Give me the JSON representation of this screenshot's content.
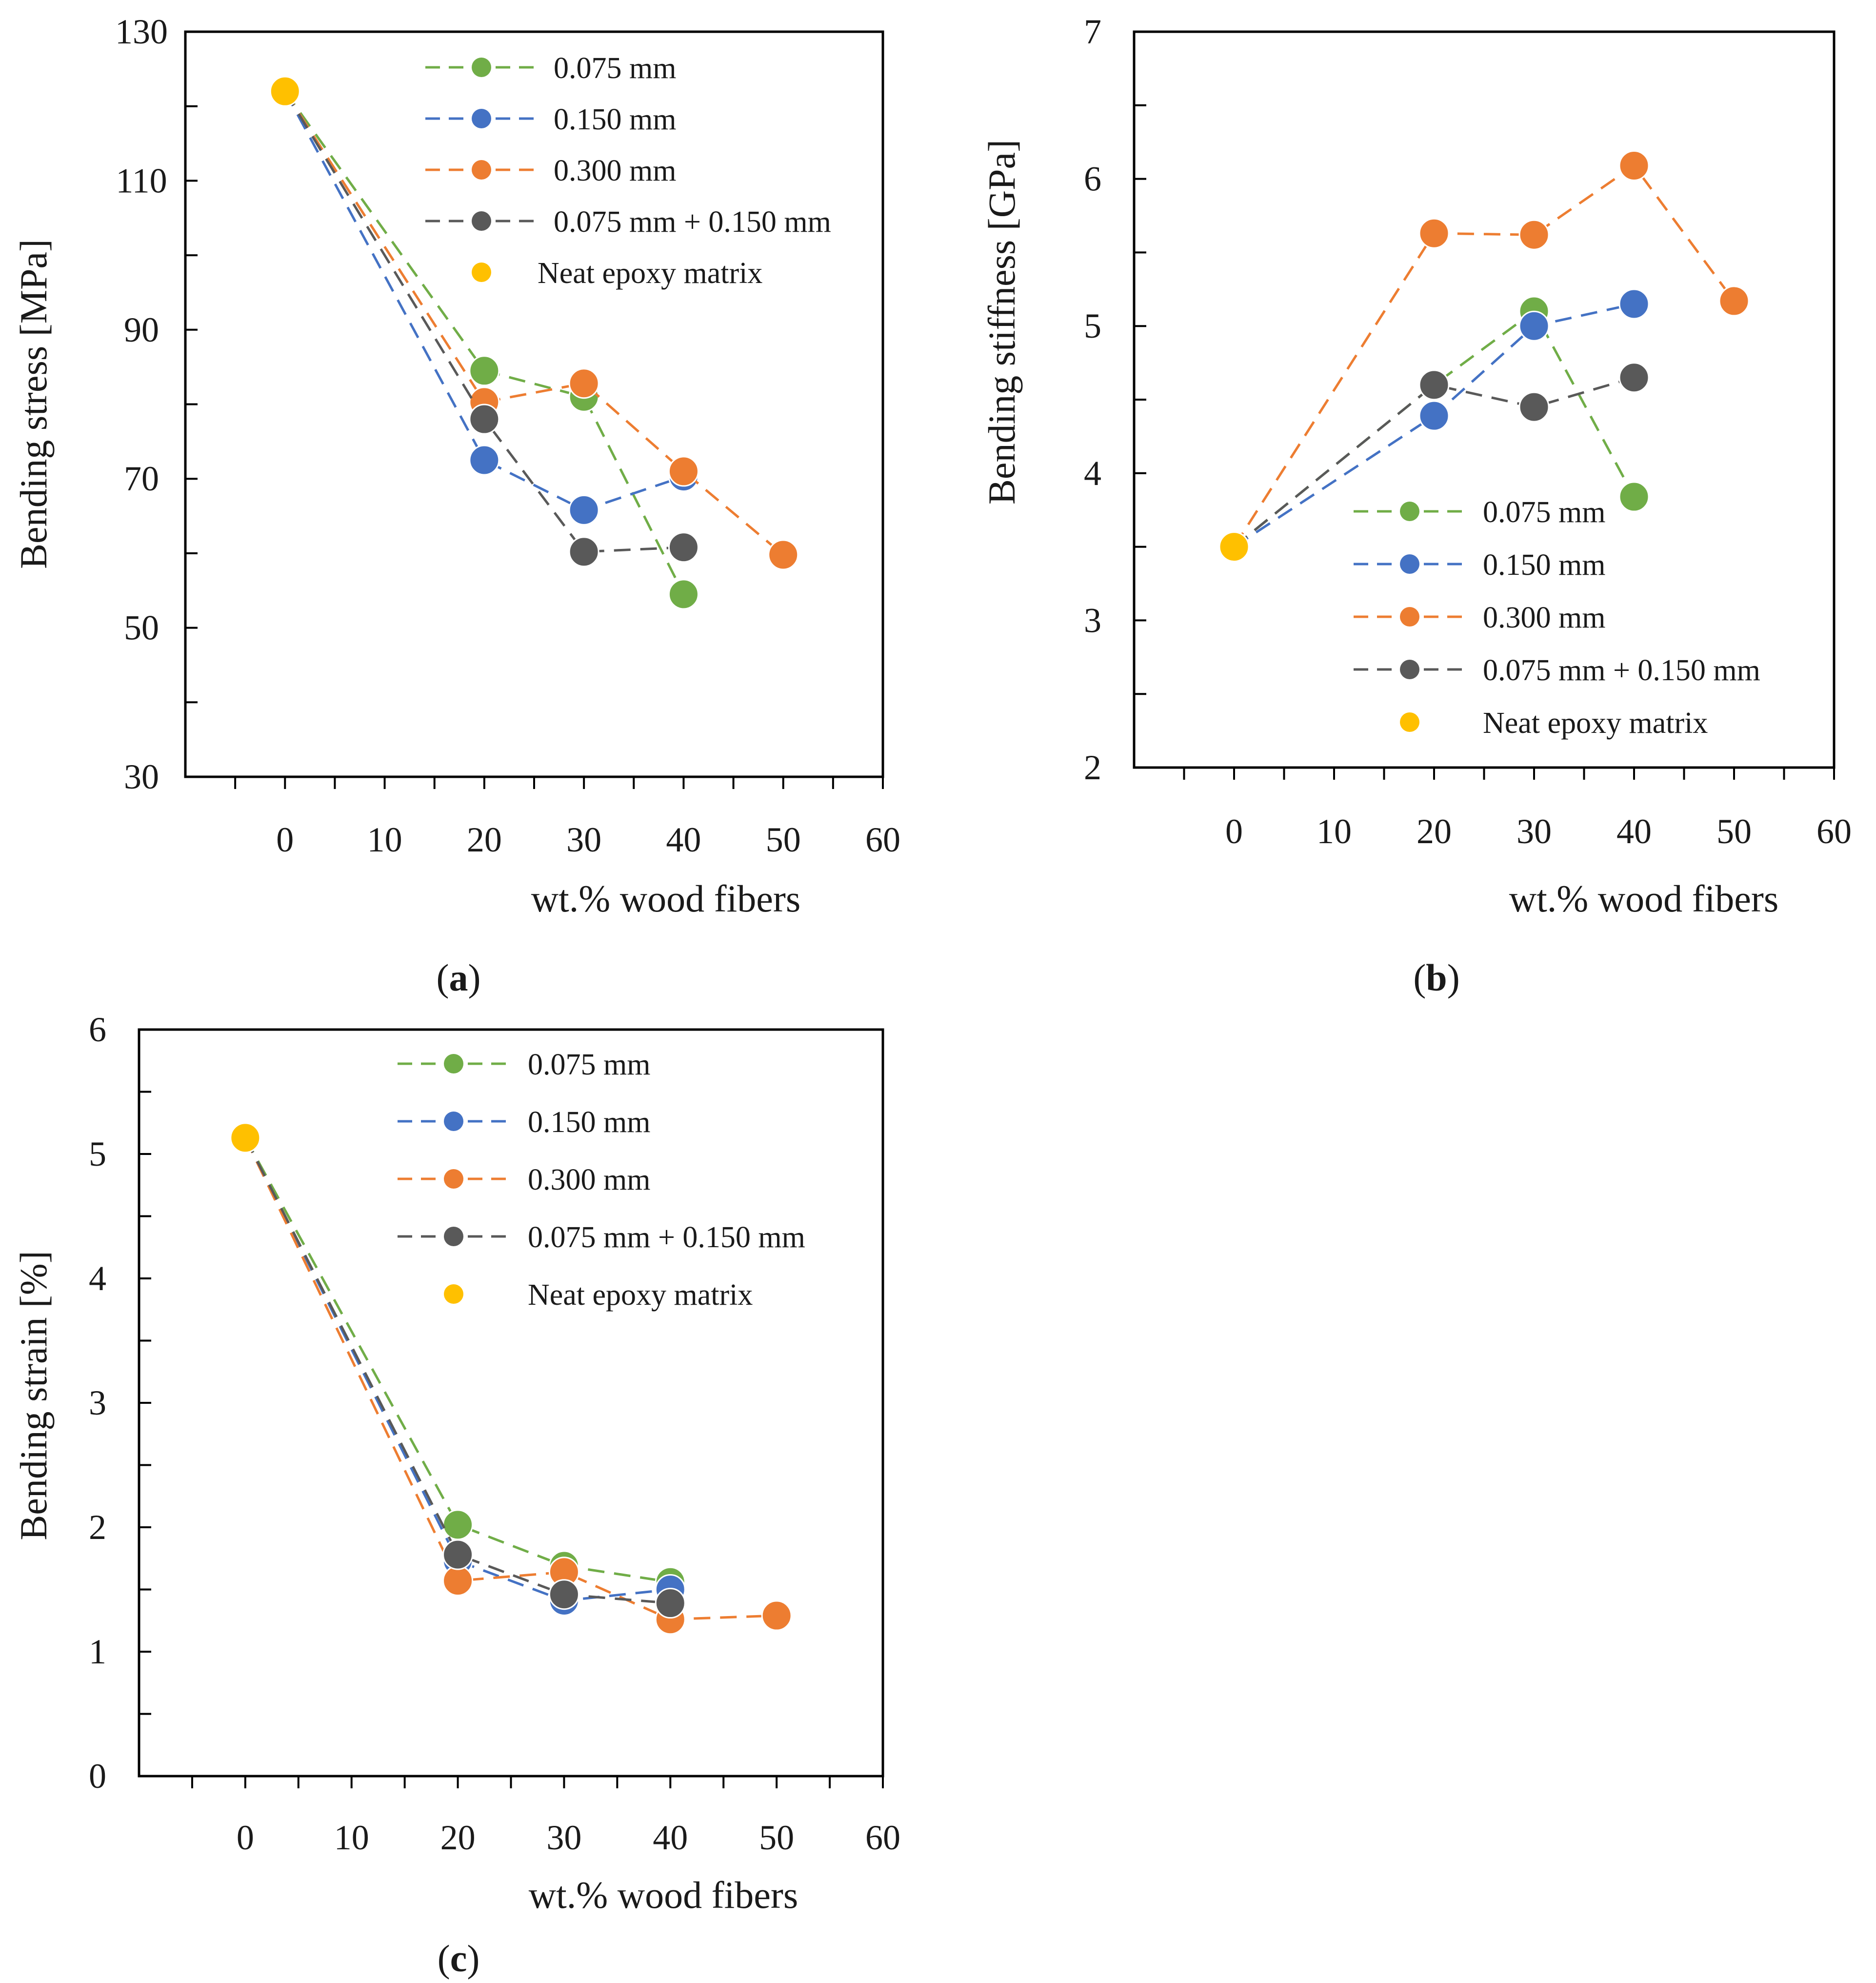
{
  "chart_data": [
    {
      "id": "a",
      "type": "line",
      "caption_letter": "a",
      "xlabel": "wt.% wood fibers",
      "ylabel": "Bending stress [MPa]",
      "xlim": [
        -10,
        60
      ],
      "ylim": [
        30,
        130
      ],
      "xticks": [
        0,
        10,
        20,
        30,
        40,
        50,
        60
      ],
      "yticks": [
        30,
        50,
        70,
        90,
        110,
        130
      ],
      "legend_position": "top",
      "series": [
        {
          "name": "0.075 mm",
          "color": "#70AD47",
          "x": [
            0,
            20,
            30,
            40
          ],
          "y": [
            122,
            84.5,
            81,
            54.5
          ]
        },
        {
          "name": "0.150 mm",
          "color": "#4472C4",
          "x": [
            0,
            20,
            30,
            40
          ],
          "y": [
            122,
            72.5,
            65.8,
            70.3
          ]
        },
        {
          "name": "0.300 mm",
          "color": "#ED7D31",
          "x": [
            0,
            20,
            30,
            40,
            50
          ],
          "y": [
            122,
            80.3,
            82.8,
            71,
            59.8
          ]
        },
        {
          "name": "0.075 mm + 0.150 mm",
          "color": "#595959",
          "x": [
            0,
            20,
            30,
            40
          ],
          "y": [
            122,
            78,
            60.2,
            60.8
          ]
        }
      ],
      "neat": {
        "name": "Neat epoxy matrix",
        "color": "#FFC000",
        "x": 0,
        "y": 122
      }
    },
    {
      "id": "b",
      "type": "line",
      "caption_letter": "b",
      "xlabel": "wt.% wood fibers",
      "ylabel": "Bending stiffness [GPa]",
      "xlim": [
        -10,
        60
      ],
      "ylim": [
        2,
        7
      ],
      "xticks": [
        0,
        10,
        20,
        30,
        40,
        50,
        60
      ],
      "yticks": [
        2,
        3,
        4,
        5,
        6,
        7
      ],
      "legend_position": "bottom-right",
      "series": [
        {
          "name": "0.075 mm",
          "color": "#70AD47",
          "x": [
            0,
            20,
            30,
            40
          ],
          "y": [
            3.5,
            4.6,
            5.1,
            3.84
          ]
        },
        {
          "name": "0.150 mm",
          "color": "#4472C4",
          "x": [
            0,
            20,
            30,
            40
          ],
          "y": [
            3.5,
            4.39,
            5.0,
            5.15
          ]
        },
        {
          "name": "0.300 mm",
          "color": "#ED7D31",
          "x": [
            0,
            20,
            30,
            40,
            50
          ],
          "y": [
            3.5,
            5.63,
            5.62,
            6.09,
            5.17
          ]
        },
        {
          "name": "0.075 mm + 0.150 mm",
          "color": "#595959",
          "x": [
            0,
            20,
            30,
            40
          ],
          "y": [
            3.5,
            4.6,
            4.45,
            4.65
          ]
        }
      ],
      "neat": {
        "name": "Neat epoxy matrix",
        "color": "#FFC000",
        "x": 0,
        "y": 3.5
      }
    },
    {
      "id": "c",
      "type": "line",
      "caption_letter": "c",
      "xlabel": "wt.% wood fibers",
      "ylabel": "Bending strain [%]",
      "xlim": [
        -10,
        60
      ],
      "ylim": [
        0,
        6
      ],
      "xticks": [
        0,
        10,
        20,
        30,
        40,
        50,
        60
      ],
      "yticks": [
        0,
        1,
        2,
        3,
        4,
        5,
        6
      ],
      "legend_position": "top",
      "series": [
        {
          "name": "0.075 mm",
          "color": "#70AD47",
          "x": [
            0,
            20,
            30,
            40
          ],
          "y": [
            5.13,
            2.02,
            1.69,
            1.56
          ]
        },
        {
          "name": "0.150 mm",
          "color": "#4472C4",
          "x": [
            0,
            20,
            30,
            40
          ],
          "y": [
            5.13,
            1.73,
            1.41,
            1.5
          ]
        },
        {
          "name": "0.300 mm",
          "color": "#ED7D31",
          "x": [
            0,
            20,
            30,
            40,
            50
          ],
          "y": [
            5.13,
            1.57,
            1.64,
            1.26,
            1.29
          ]
        },
        {
          "name": "0.075 mm + 0.150 mm",
          "color": "#595959",
          "x": [
            0,
            20,
            30,
            40
          ],
          "y": [
            5.13,
            1.78,
            1.46,
            1.39
          ]
        }
      ],
      "neat": {
        "name": "Neat epoxy matrix",
        "color": "#FFC000",
        "x": 0,
        "y": 5.13
      }
    }
  ]
}
